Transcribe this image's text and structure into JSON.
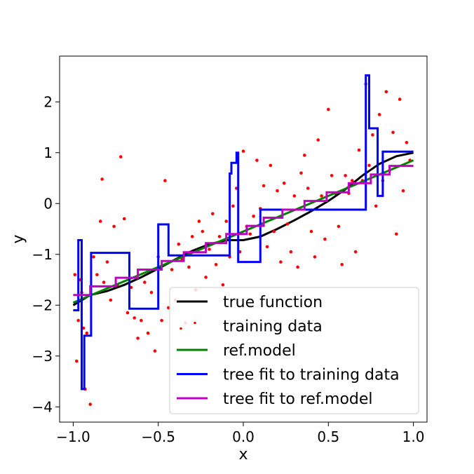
{
  "chart_data": {
    "type": "line",
    "title": "",
    "xlabel": "x",
    "ylabel": "y",
    "xlim": [
      -1.08,
      1.08
    ],
    "ylim": [
      -4.3,
      2.9
    ],
    "xticks": [
      -1.0,
      -0.5,
      0.0,
      0.5,
      1.0
    ],
    "xtick_labels": [
      "−1.0",
      "−0.5",
      "0.0",
      "0.5",
      "1.0"
    ],
    "yticks": [
      -4,
      -3,
      -2,
      -1,
      0,
      1,
      2
    ],
    "ytick_labels": [
      "−4",
      "−3",
      "−2",
      "−1",
      "0",
      "1",
      "2"
    ],
    "grid": false,
    "legend_position": "lower-right",
    "series": [
      {
        "name": "true function",
        "kind": "line",
        "color": "#000000",
        "x": [
          -1.0,
          -0.9,
          -0.8,
          -0.7,
          -0.6,
          -0.5,
          -0.4,
          -0.3,
          -0.2,
          -0.1,
          0.0,
          0.1,
          0.2,
          0.3,
          0.4,
          0.5,
          0.6,
          0.7,
          0.8,
          0.9,
          1.0
        ],
        "y": [
          -2.0,
          -1.8,
          -1.72,
          -1.6,
          -1.45,
          -1.28,
          -1.1,
          -0.93,
          -0.8,
          -0.72,
          -0.72,
          -0.65,
          -0.5,
          -0.33,
          -0.15,
          0.05,
          0.28,
          0.55,
          0.78,
          0.93,
          1.0
        ]
      },
      {
        "name": "training data",
        "kind": "scatter",
        "color": "#ff0000",
        "x": [
          -0.99,
          -0.98,
          -0.97,
          -0.96,
          -0.95,
          -0.94,
          -0.93,
          -0.92,
          -0.9,
          -0.88,
          -0.86,
          -0.84,
          -0.83,
          -0.82,
          -0.8,
          -0.78,
          -0.76,
          -0.74,
          -0.72,
          -0.7,
          -0.68,
          -0.66,
          -0.64,
          -0.62,
          -0.6,
          -0.58,
          -0.56,
          -0.54,
          -0.52,
          -0.5,
          -0.48,
          -0.46,
          -0.44,
          -0.42,
          -0.4,
          -0.38,
          -0.36,
          -0.34,
          -0.32,
          -0.3,
          -0.28,
          -0.26,
          -0.24,
          -0.22,
          -0.2,
          -0.18,
          -0.16,
          -0.14,
          -0.12,
          -0.1,
          -0.08,
          -0.06,
          -0.04,
          -0.02,
          0.0,
          0.02,
          0.04,
          0.06,
          0.08,
          0.1,
          0.12,
          0.14,
          0.16,
          0.18,
          0.2,
          0.22,
          0.24,
          0.26,
          0.28,
          0.3,
          0.32,
          0.34,
          0.36,
          0.38,
          0.4,
          0.42,
          0.44,
          0.46,
          0.48,
          0.5,
          0.52,
          0.54,
          0.56,
          0.58,
          0.6,
          0.62,
          0.64,
          0.66,
          0.68,
          0.7,
          0.72,
          0.74,
          0.76,
          0.78,
          0.8,
          0.82,
          0.84,
          0.86,
          0.88,
          0.9,
          0.92,
          0.94,
          0.96,
          0.98
        ],
        "y": [
          -1.4,
          -3.1,
          -2.3,
          -1.5,
          -1.75,
          -2.45,
          -3.65,
          -2.55,
          -3.95,
          -1.05,
          -1.4,
          -0.35,
          0.48,
          -1.55,
          -1.15,
          -1.9,
          -0.45,
          -1.6,
          0.92,
          -0.3,
          -2.15,
          -1.65,
          -2.25,
          -2.65,
          -2.3,
          -1.55,
          -2.55,
          -1.75,
          -2.9,
          -1.05,
          -2.3,
          0.45,
          -2.05,
          -1.3,
          -1.9,
          -0.8,
          -1.1,
          -2.35,
          -1.25,
          -0.65,
          -1.7,
          -0.35,
          -0.55,
          -1.45,
          -0.9,
          -0.2,
          -1.2,
          -0.65,
          -1.6,
          -0.35,
          -1.05,
          -0.05,
          0.3,
          -0.95,
          1.03,
          -0.45,
          -0.6,
          -0.25,
          0.85,
          -0.1,
          0.35,
          -0.85,
          0.75,
          -0.55,
          0.25,
          -1.15,
          0.4,
          -0.4,
          -0.95,
          0.15,
          -1.25,
          0.6,
          0.95,
          0.3,
          -0.55,
          -1.05,
          1.25,
          0.15,
          -0.7,
          1.85,
          0.55,
          0.2,
          -0.45,
          -1.2,
          0.55,
          0.2,
          0.45,
          -0.95,
          1.05,
          0.45,
          2.35,
          0.75,
          1.35,
          -0.05,
          1.75,
          0.45,
          2.2,
          0.65,
          1.4,
          -0.6,
          2.05,
          0.25,
          1.2,
          0.85
        ]
      },
      {
        "name": "ref.model",
        "kind": "line",
        "color": "#008000",
        "x": [
          -1.0,
          1.0
        ],
        "y": [
          -1.95,
          0.85
        ]
      },
      {
        "name": "tree fit to training data",
        "kind": "step",
        "color": "#0000ff",
        "x": [
          -1.0,
          -0.97,
          -0.97,
          -0.95,
          -0.95,
          -0.935,
          -0.935,
          -0.925,
          -0.925,
          -0.895,
          -0.895,
          -0.865,
          -0.865,
          -0.67,
          -0.67,
          -0.64,
          -0.64,
          -0.5,
          -0.5,
          -0.44,
          -0.44,
          -0.42,
          -0.42,
          -0.08,
          -0.08,
          -0.07,
          -0.07,
          -0.04,
          -0.04,
          -0.03,
          -0.03,
          -0.01,
          -0.01,
          0.1,
          0.1,
          0.72,
          0.72,
          0.74,
          0.74,
          0.79,
          0.79,
          0.82,
          0.82,
          1.0
        ],
        "y": [
          -2.1,
          -2.1,
          -0.72,
          -0.72,
          -3.65,
          -3.65,
          -2.6,
          -2.6,
          -2.6,
          -2.6,
          -0.97,
          -0.97,
          -0.97,
          -0.97,
          -2.07,
          -2.07,
          -2.07,
          -2.07,
          -0.41,
          -0.41,
          -1.02,
          -1.02,
          -1.02,
          -1.02,
          0.59,
          0.59,
          0.8,
          0.8,
          1.0,
          1.0,
          -1.15,
          -1.15,
          -1.15,
          -1.15,
          -0.12,
          -0.12,
          2.52,
          2.52,
          1.48,
          1.48,
          0.15,
          0.15,
          1.02,
          1.02
        ]
      },
      {
        "name": "tree fit to ref.model",
        "kind": "step",
        "color": "#c000c0",
        "x": [
          -1.0,
          -0.9,
          -0.9,
          -0.75,
          -0.75,
          -0.62,
          -0.62,
          -0.48,
          -0.48,
          -0.35,
          -0.35,
          -0.22,
          -0.22,
          -0.1,
          -0.1,
          0.02,
          0.02,
          0.12,
          0.12,
          0.23,
          0.23,
          0.36,
          0.36,
          0.49,
          0.49,
          0.62,
          0.62,
          0.75,
          0.75,
          0.86,
          0.86,
          1.0
        ],
        "y": [
          -1.8,
          -1.8,
          -1.63,
          -1.63,
          -1.46,
          -1.46,
          -1.3,
          -1.3,
          -1.13,
          -1.13,
          -0.96,
          -0.96,
          -0.78,
          -0.78,
          -0.6,
          -0.6,
          -0.44,
          -0.44,
          -0.28,
          -0.28,
          -0.12,
          -0.12,
          0.05,
          0.05,
          0.22,
          0.22,
          0.4,
          0.4,
          0.57,
          0.57,
          0.74,
          0.74
        ]
      }
    ]
  }
}
